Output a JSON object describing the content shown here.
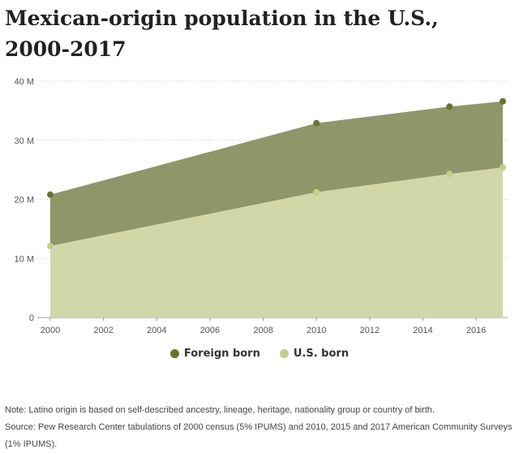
{
  "title": "Mexican-origin population in the U.S., 2000-2017",
  "chart_data": {
    "type": "area",
    "x": [
      2000,
      2010,
      2015,
      2017
    ],
    "series": [
      {
        "name": "U.S. born",
        "values": [
          12.1,
          21.2,
          24.3,
          25.4
        ],
        "color": "#c5cd8e"
      },
      {
        "name": "Foreign born",
        "values": [
          8.7,
          11.7,
          11.4,
          11.2
        ],
        "color": "#6b7230"
      }
    ],
    "totals": [
      20.8,
      32.9,
      35.7,
      36.6
    ],
    "stacked": true,
    "x_ticks": [
      "2000",
      "2002",
      "2004",
      "2006",
      "2008",
      "2010",
      "2012",
      "2014",
      "2016"
    ],
    "y_ticks": [
      "0",
      "10 M",
      "20 M",
      "30 M",
      "40 M"
    ],
    "xlim": [
      2000,
      2017
    ],
    "ylim": [
      0,
      40
    ],
    "grid": true,
    "legend_position": "bottom",
    "fill_colors": {
      "foreign_born": "#8f966a",
      "us_born": "#d2d7a9"
    },
    "xlabel": "",
    "ylabel": ""
  },
  "legend": {
    "foreign_born": "Foreign born",
    "us_born": "U.S. born"
  },
  "note": "Note: Latino origin is based on self-described ancestry, lineage, heritage, nationality group or country of birth.",
  "source": "Source: Pew Research Center tabulations of 2000 census (5% IPUMS) and 2010, 2015 and 2017 American Community Surveys (1% IPUMS)."
}
